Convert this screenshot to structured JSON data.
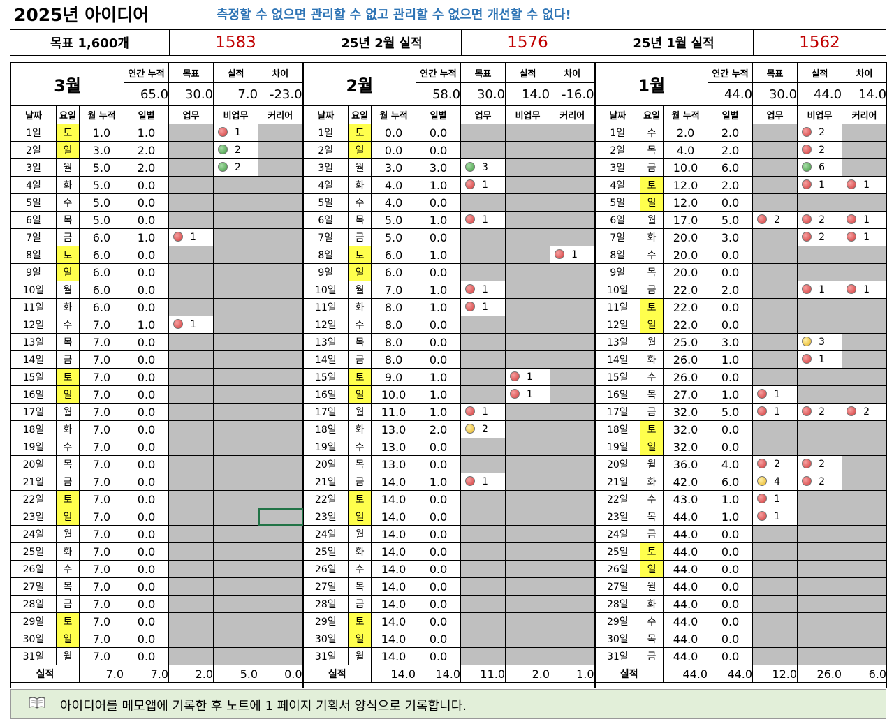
{
  "header": {
    "title": "2025년 아이디어",
    "slogan": "측정할 수 없으면 관리할 수 없고 관리할 수 없으면 개선할 수 없다!"
  },
  "summary": [
    "목표 1,600개",
    "1583",
    "25년 2월 실적",
    "1576",
    "25년 1월 실적",
    "1562"
  ],
  "stat_labels": [
    "연간 누적",
    "목표",
    "실적",
    "차이"
  ],
  "columns": [
    "날짜",
    "요일",
    "월 누적",
    "일별",
    "업무",
    "비업무",
    "커리어"
  ],
  "total_label": "실적",
  "months": [
    {
      "label": "3월",
      "stats": [
        "65.0",
        "30.0",
        "7.0",
        "-23.0"
      ],
      "rows": [
        [
          "1일",
          "토",
          "1.0",
          "1.0",
          null,
          {
            "n": "1",
            "s": "red"
          },
          null
        ],
        [
          "2일",
          "일",
          "3.0",
          "2.0",
          null,
          {
            "n": "2",
            "s": "green"
          },
          null
        ],
        [
          "3일",
          "월",
          "5.0",
          "2.0",
          null,
          {
            "n": "2",
            "s": "green"
          },
          null
        ],
        [
          "4일",
          "화",
          "5.0",
          "0.0",
          null,
          null,
          null
        ],
        [
          "5일",
          "수",
          "5.0",
          "0.0",
          null,
          null,
          null
        ],
        [
          "6일",
          "목",
          "5.0",
          "0.0",
          null,
          null,
          null
        ],
        [
          "7일",
          "금",
          "6.0",
          "1.0",
          {
            "n": "1",
            "s": "red"
          },
          null,
          null
        ],
        [
          "8일",
          "토",
          "6.0",
          "0.0",
          null,
          null,
          null
        ],
        [
          "9일",
          "일",
          "6.0",
          "0.0",
          null,
          null,
          null
        ],
        [
          "10일",
          "월",
          "6.0",
          "0.0",
          null,
          null,
          null
        ],
        [
          "11일",
          "화",
          "6.0",
          "0.0",
          null,
          null,
          null
        ],
        [
          "12일",
          "수",
          "7.0",
          "1.0",
          {
            "n": "1",
            "s": "red"
          },
          null,
          null
        ],
        [
          "13일",
          "목",
          "7.0",
          "0.0",
          null,
          null,
          null
        ],
        [
          "14일",
          "금",
          "7.0",
          "0.0",
          null,
          null,
          null
        ],
        [
          "15일",
          "토",
          "7.0",
          "0.0",
          null,
          null,
          null
        ],
        [
          "16일",
          "일",
          "7.0",
          "0.0",
          null,
          null,
          null
        ],
        [
          "17일",
          "월",
          "7.0",
          "0.0",
          null,
          null,
          null
        ],
        [
          "18일",
          "화",
          "7.0",
          "0.0",
          null,
          null,
          null
        ],
        [
          "19일",
          "수",
          "7.0",
          "0.0",
          null,
          null,
          null
        ],
        [
          "20일",
          "목",
          "7.0",
          "0.0",
          null,
          null,
          null
        ],
        [
          "21일",
          "금",
          "7.0",
          "0.0",
          null,
          null,
          null
        ],
        [
          "22일",
          "토",
          "7.0",
          "0.0",
          null,
          null,
          null
        ],
        [
          "23일",
          "일",
          "7.0",
          "0.0",
          null,
          null,
          null
        ],
        [
          "24일",
          "월",
          "7.0",
          "0.0",
          null,
          null,
          null
        ],
        [
          "25일",
          "화",
          "7.0",
          "0.0",
          null,
          null,
          null
        ],
        [
          "26일",
          "수",
          "7.0",
          "0.0",
          null,
          null,
          null
        ],
        [
          "27일",
          "목",
          "7.0",
          "0.0",
          null,
          null,
          null
        ],
        [
          "28일",
          "금",
          "7.0",
          "0.0",
          null,
          null,
          null
        ],
        [
          "29일",
          "토",
          "7.0",
          "0.0",
          null,
          null,
          null
        ],
        [
          "30일",
          "일",
          "7.0",
          "0.0",
          null,
          null,
          null
        ],
        [
          "31일",
          "월",
          "7.0",
          "0.0",
          null,
          null,
          null
        ]
      ],
      "totals": [
        "7.0",
        "7.0",
        "2.0",
        "5.0",
        "0.0"
      ]
    },
    {
      "label": "2월",
      "stats": [
        "58.0",
        "30.0",
        "14.0",
        "-16.0"
      ],
      "rows": [
        [
          "1일",
          "토",
          "0.0",
          "0.0",
          null,
          null,
          null
        ],
        [
          "2일",
          "일",
          "0.0",
          "0.0",
          null,
          null,
          null
        ],
        [
          "3일",
          "월",
          "3.0",
          "3.0",
          {
            "n": "3",
            "s": "green"
          },
          null,
          null
        ],
        [
          "4일",
          "화",
          "4.0",
          "1.0",
          {
            "n": "1",
            "s": "red"
          },
          null,
          null
        ],
        [
          "5일",
          "수",
          "4.0",
          "0.0",
          null,
          null,
          null
        ],
        [
          "6일",
          "목",
          "5.0",
          "1.0",
          {
            "n": "1",
            "s": "red"
          },
          null,
          null
        ],
        [
          "7일",
          "금",
          "5.0",
          "0.0",
          null,
          null,
          null
        ],
        [
          "8일",
          "토",
          "6.0",
          "1.0",
          null,
          null,
          {
            "n": "1",
            "s": "red"
          }
        ],
        [
          "9일",
          "일",
          "6.0",
          "0.0",
          null,
          null,
          null
        ],
        [
          "10일",
          "월",
          "7.0",
          "1.0",
          {
            "n": "1",
            "s": "red"
          },
          null,
          null
        ],
        [
          "11일",
          "화",
          "8.0",
          "1.0",
          {
            "n": "1",
            "s": "red"
          },
          null,
          null
        ],
        [
          "12일",
          "수",
          "8.0",
          "0.0",
          null,
          null,
          null
        ],
        [
          "13일",
          "목",
          "8.0",
          "0.0",
          null,
          null,
          null
        ],
        [
          "14일",
          "금",
          "8.0",
          "0.0",
          null,
          null,
          null
        ],
        [
          "15일",
          "토",
          "9.0",
          "1.0",
          null,
          {
            "n": "1",
            "s": "red"
          },
          null
        ],
        [
          "16일",
          "일",
          "10.0",
          "1.0",
          null,
          {
            "n": "1",
            "s": "red"
          },
          null
        ],
        [
          "17일",
          "월",
          "11.0",
          "1.0",
          {
            "n": "1",
            "s": "red"
          },
          null,
          null
        ],
        [
          "18일",
          "화",
          "13.0",
          "2.0",
          {
            "n": "2",
            "s": "yellow"
          },
          null,
          null
        ],
        [
          "19일",
          "수",
          "13.0",
          "0.0",
          null,
          null,
          null
        ],
        [
          "20일",
          "목",
          "13.0",
          "0.0",
          null,
          null,
          null
        ],
        [
          "21일",
          "금",
          "14.0",
          "1.0",
          {
            "n": "1",
            "s": "red"
          },
          null,
          null
        ],
        [
          "22일",
          "토",
          "14.0",
          "0.0",
          null,
          null,
          null
        ],
        [
          "23일",
          "일",
          "14.0",
          "0.0",
          null,
          null,
          null
        ],
        [
          "24일",
          "월",
          "14.0",
          "0.0",
          null,
          null,
          null
        ],
        [
          "25일",
          "화",
          "14.0",
          "0.0",
          null,
          null,
          null
        ],
        [
          "26일",
          "수",
          "14.0",
          "0.0",
          null,
          null,
          null
        ],
        [
          "27일",
          "목",
          "14.0",
          "0.0",
          null,
          null,
          null
        ],
        [
          "28일",
          "금",
          "14.0",
          "0.0",
          null,
          null,
          null
        ],
        [
          "29일",
          "토",
          "14.0",
          "0.0",
          null,
          null,
          null
        ],
        [
          "30일",
          "일",
          "14.0",
          "0.0",
          null,
          null,
          null
        ],
        [
          "31일",
          "월",
          "14.0",
          "0.0",
          null,
          null,
          null
        ]
      ],
      "totals": [
        "14.0",
        "14.0",
        "11.0",
        "2.0",
        "1.0"
      ]
    },
    {
      "label": "1월",
      "stats": [
        "44.0",
        "30.0",
        "44.0",
        "14.0"
      ],
      "rows": [
        [
          "1일",
          "수",
          "2.0",
          "2.0",
          null,
          {
            "n": "2",
            "s": "red"
          },
          null
        ],
        [
          "2일",
          "목",
          "4.0",
          "2.0",
          null,
          {
            "n": "2",
            "s": "red"
          },
          null
        ],
        [
          "3일",
          "금",
          "10.0",
          "6.0",
          null,
          {
            "n": "6",
            "s": "green"
          },
          null
        ],
        [
          "4일",
          "토",
          "12.0",
          "2.0",
          null,
          {
            "n": "1",
            "s": "red"
          },
          {
            "n": "1",
            "s": "red"
          }
        ],
        [
          "5일",
          "일",
          "12.0",
          "0.0",
          null,
          null,
          null
        ],
        [
          "6일",
          "월",
          "17.0",
          "5.0",
          {
            "n": "2",
            "s": "red"
          },
          {
            "n": "2",
            "s": "red"
          },
          {
            "n": "1",
            "s": "red"
          }
        ],
        [
          "7일",
          "화",
          "20.0",
          "3.0",
          null,
          {
            "n": "2",
            "s": "red"
          },
          {
            "n": "1",
            "s": "red"
          }
        ],
        [
          "8일",
          "수",
          "20.0",
          "0.0",
          null,
          null,
          null
        ],
        [
          "9일",
          "목",
          "20.0",
          "0.0",
          null,
          null,
          null
        ],
        [
          "10일",
          "금",
          "22.0",
          "2.0",
          null,
          {
            "n": "1",
            "s": "red"
          },
          {
            "n": "1",
            "s": "red"
          }
        ],
        [
          "11일",
          "토",
          "22.0",
          "0.0",
          null,
          null,
          null
        ],
        [
          "12일",
          "일",
          "22.0",
          "0.0",
          null,
          null,
          null
        ],
        [
          "13일",
          "월",
          "25.0",
          "3.0",
          null,
          {
            "n": "3",
            "s": "yellow"
          },
          null
        ],
        [
          "14일",
          "화",
          "26.0",
          "1.0",
          null,
          {
            "n": "1",
            "s": "red"
          },
          null
        ],
        [
          "15일",
          "수",
          "26.0",
          "0.0",
          null,
          null,
          null
        ],
        [
          "16일",
          "목",
          "27.0",
          "1.0",
          {
            "n": "1",
            "s": "red"
          },
          null,
          null
        ],
        [
          "17일",
          "금",
          "32.0",
          "5.0",
          {
            "n": "1",
            "s": "red"
          },
          {
            "n": "2",
            "s": "red"
          },
          {
            "n": "2",
            "s": "red"
          }
        ],
        [
          "18일",
          "토",
          "32.0",
          "0.0",
          null,
          null,
          null
        ],
        [
          "19일",
          "일",
          "32.0",
          "0.0",
          null,
          null,
          null
        ],
        [
          "20일",
          "월",
          "36.0",
          "4.0",
          {
            "n": "2",
            "s": "red"
          },
          {
            "n": "2",
            "s": "red"
          },
          null
        ],
        [
          "21일",
          "화",
          "42.0",
          "6.0",
          {
            "n": "4",
            "s": "yellow"
          },
          {
            "n": "2",
            "s": "red"
          },
          null
        ],
        [
          "22일",
          "수",
          "43.0",
          "1.0",
          {
            "n": "1",
            "s": "red"
          },
          null,
          null
        ],
        [
          "23일",
          "목",
          "44.0",
          "1.0",
          {
            "n": "1",
            "s": "red"
          },
          null,
          null
        ],
        [
          "24일",
          "금",
          "44.0",
          "0.0",
          null,
          null,
          null
        ],
        [
          "25일",
          "토",
          "44.0",
          "0.0",
          null,
          null,
          null
        ],
        [
          "26일",
          "일",
          "44.0",
          "0.0",
          null,
          null,
          null
        ],
        [
          "27일",
          "월",
          "44.0",
          "0.0",
          null,
          null,
          null
        ],
        [
          "28일",
          "화",
          "44.0",
          "0.0",
          null,
          null,
          null
        ],
        [
          "29일",
          "수",
          "44.0",
          "0.0",
          null,
          null,
          null
        ],
        [
          "30일",
          "목",
          "44.0",
          "0.0",
          null,
          null,
          null
        ],
        [
          "31일",
          "금",
          "44.0",
          "0.0",
          null,
          null,
          null
        ]
      ],
      "totals": [
        "44.0",
        "44.0",
        "12.0",
        "26.0",
        "6.0"
      ]
    }
  ],
  "note": "아이디어를 메모앱에 기록한 후 노트에 1 페이지 기획서 양식으로 기록합니다."
}
